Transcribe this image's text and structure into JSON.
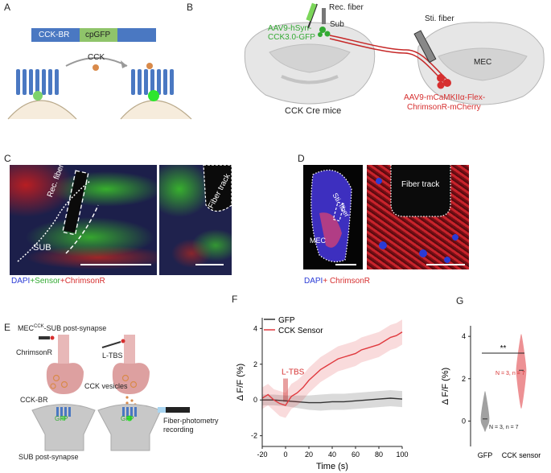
{
  "panels": {
    "A": {
      "label": "A",
      "construct_left": "CCK-BR",
      "construct_right": "cpGFP",
      "ligand": "CCK"
    },
    "B": {
      "label": "B",
      "rec_fiber": "Rec. fiber",
      "virus_green_l1": "AAV9-hSyn-",
      "virus_green_l2": "CCK3.0-GFP",
      "sub": "Sub",
      "sti_fiber": "Sti. fiber",
      "mec": "MEC",
      "virus_red_l1": "AAV9-mCaMKIIα-Flex-",
      "virus_red_l2": "ChrimsonR-mCherry",
      "caption": "CCK Cre mice"
    },
    "C": {
      "label": "C",
      "rec_fiber": "Rec. fiber",
      "sub": "SUB",
      "fiber_track": "Fiber track",
      "legend_dapi": "DAPI",
      "legend_sensor": "+Sensor",
      "legend_chrimson": "+ChrimsonR"
    },
    "D": {
      "label": "D",
      "sti_fiber": "Sti. fiber",
      "mec": "MEC",
      "fiber_track": "Fiber track",
      "legend_dapi": "DAPI",
      "legend_chrimson": "+ ChrimsonR"
    },
    "E": {
      "label": "E",
      "title_pre": "MEC",
      "title_sup": "CCK",
      "title_post": "-SUB post-synapse",
      "chrimsonr": "ChrimsonR",
      "ltbs": "L-TBS",
      "cck_vesicles": "CCK vesicles",
      "cck_br": "CCK-BR",
      "gfp": "GFP",
      "gfp2": "GFP",
      "fiber_rec_l1": "Fiber-photometry",
      "fiber_rec_l2": "recording",
      "sub_post": "SUB post-synapse"
    },
    "F": {
      "label": "F",
      "ltbs": "L-TBS"
    },
    "G": {
      "label": "G",
      "significance": "**",
      "n_sensor": "N = 3, n = 7",
      "n_gfp": "N = 3, n = 7"
    }
  },
  "chart_data": [
    {
      "type": "line",
      "panel": "F",
      "title": "",
      "xlabel": "Time (s)",
      "ylabel": "Δ F/F (%)",
      "xlim": [
        -20,
        100
      ],
      "ylim": [
        -2.6,
        4.6
      ],
      "xticks": [
        -20,
        0,
        20,
        40,
        60,
        80,
        100
      ],
      "yticks": [
        -2,
        0,
        2,
        4
      ],
      "stim_time": 0,
      "legend_position": "top-left",
      "series": [
        {
          "name": "GFP",
          "color": "#333333",
          "x": [
            -20,
            -10,
            0,
            10,
            20,
            30,
            40,
            50,
            60,
            70,
            80,
            90,
            100
          ],
          "y": [
            0.0,
            0.0,
            -0.05,
            -0.1,
            -0.15,
            -0.15,
            -0.1,
            -0.1,
            -0.05,
            0.0,
            0.05,
            0.1,
            0.05
          ],
          "err": [
            0.3,
            0.3,
            0.3,
            0.35,
            0.4,
            0.45,
            0.45,
            0.45,
            0.45,
            0.45,
            0.45,
            0.45,
            0.45
          ]
        },
        {
          "name": "CCK Sensor",
          "color": "#e0393e",
          "x": [
            -20,
            -15,
            -10,
            -5,
            0,
            5,
            10,
            15,
            20,
            25,
            30,
            35,
            40,
            45,
            50,
            55,
            60,
            65,
            70,
            75,
            80,
            85,
            90,
            95,
            100
          ],
          "y": [
            0.1,
            0.3,
            0.0,
            -0.2,
            -0.3,
            0.2,
            0.4,
            0.7,
            1.1,
            1.4,
            1.7,
            1.9,
            2.1,
            2.3,
            2.4,
            2.5,
            2.6,
            2.8,
            2.9,
            3.0,
            3.1,
            3.3,
            3.5,
            3.6,
            3.8
          ],
          "err": [
            0.6,
            0.6,
            0.6,
            0.7,
            0.7,
            0.7,
            0.7,
            0.7,
            0.7,
            0.7,
            0.7,
            0.7,
            0.7,
            0.7,
            0.7,
            0.7,
            0.7,
            0.7,
            0.7,
            0.7,
            0.7,
            0.7,
            0.7,
            0.7,
            0.7
          ]
        }
      ]
    },
    {
      "type": "violin",
      "panel": "G",
      "xlabel": "",
      "ylabel": "Δ F/F (%)",
      "ylim": [
        -1.2,
        4.5
      ],
      "yticks": [
        0,
        2,
        4
      ],
      "categories": [
        "GFP",
        "CCK sensor"
      ],
      "groups": [
        {
          "name": "GFP",
          "color": "#555555",
          "median": 0.1,
          "min": -0.5,
          "max": 1.4
        },
        {
          "name": "CCK sensor",
          "color": "#e0393e",
          "median": 2.4,
          "min": 0.6,
          "max": 4.1
        }
      ]
    }
  ],
  "colors": {
    "cckbr": "#4a78c2",
    "cpgfp": "#8fc46a",
    "red": "#d62f2f",
    "green": "#33aa33",
    "blue": "#2a3bd6"
  }
}
